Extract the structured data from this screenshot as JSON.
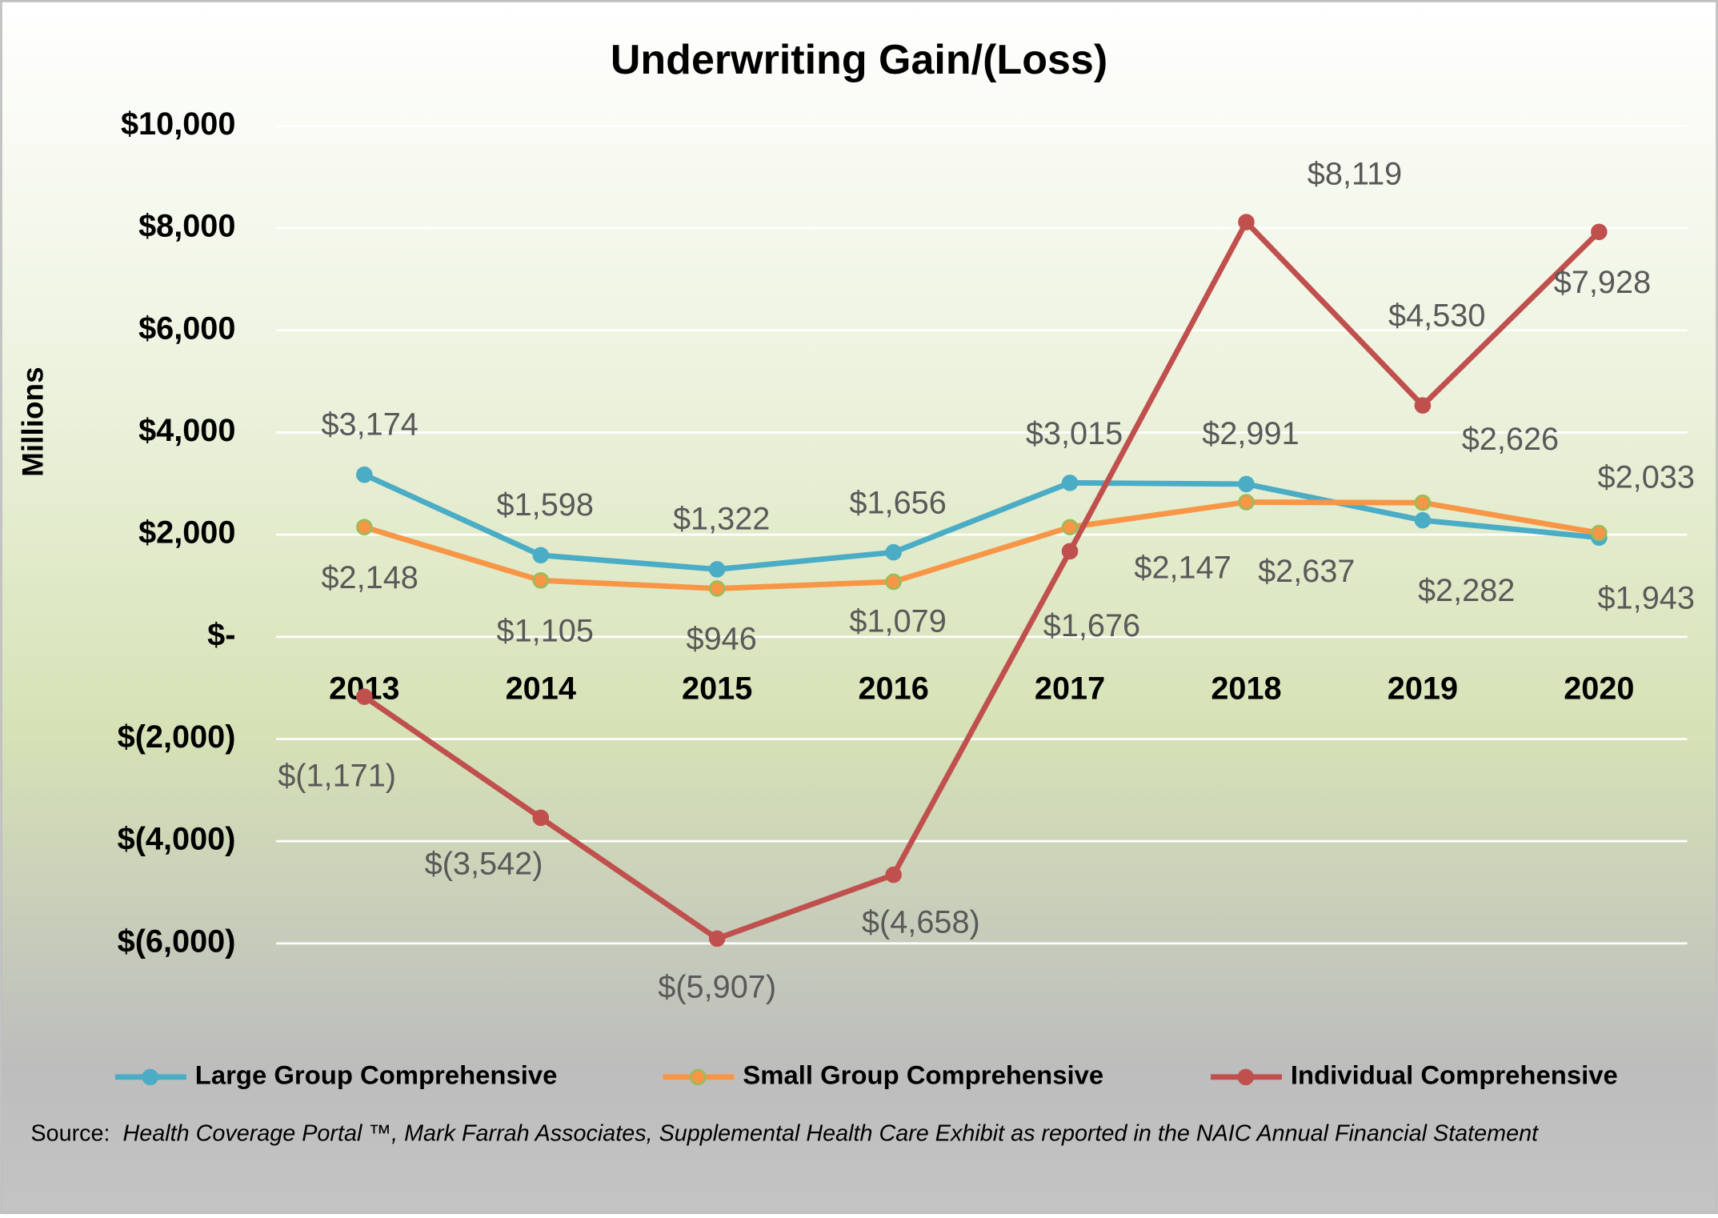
{
  "chart_data": {
    "type": "line",
    "title": "Underwriting Gain/(Loss)",
    "y_label": "Millions",
    "categories": [
      "2013",
      "2014",
      "2015",
      "2016",
      "2017",
      "2018",
      "2019",
      "2020"
    ],
    "series": [
      {
        "name": "Large Group Comprehensive",
        "color": "#4bacc6",
        "marker_edge": "#4bacc6",
        "values": [
          3174,
          1598,
          1322,
          1656,
          3015,
          2991,
          2282,
          1943
        ],
        "value_labels": [
          "$3,174",
          "$1,598",
          "$1,322",
          "$1,656",
          "$3,015",
          "$2,991",
          "$2,282",
          "$1,943"
        ]
      },
      {
        "name": "Small Group Comprehensive",
        "color": "#f79646",
        "marker_edge": "#9bbb59",
        "values": [
          2148,
          1105,
          946,
          1079,
          2147,
          2637,
          2626,
          2033
        ],
        "value_labels": [
          "$2,148",
          "$1,105",
          "$946",
          "$1,079",
          "$2,147",
          "$2,637",
          "$2,626",
          "$2,033"
        ]
      },
      {
        "name": "Individual Comprehensive",
        "color": "#c0504d",
        "marker_edge": "#c0504d",
        "values": [
          -1171,
          -3542,
          -5907,
          -4658,
          1676,
          8119,
          4530,
          7928
        ],
        "value_labels": [
          "$(1,171)",
          "$(3,542)",
          "$(5,907)",
          "$(4,658)",
          "$1,676",
          "$8,119",
          "$4,530",
          "$7,928"
        ]
      }
    ],
    "ylim": [
      -6000,
      10000
    ],
    "yticks": [
      {
        "value": -6000,
        "label": "$(6,000)"
      },
      {
        "value": -4000,
        "label": "$(4,000)"
      },
      {
        "value": -2000,
        "label": "$(2,000)"
      },
      {
        "value": 0,
        "label": "$-"
      },
      {
        "value": 2000,
        "label": "$2,000"
      },
      {
        "value": 4000,
        "label": "$4,000"
      },
      {
        "value": 6000,
        "label": "$6,000"
      },
      {
        "value": 8000,
        "label": "$8,000"
      },
      {
        "value": 10000,
        "label": "$10,000"
      }
    ],
    "grid": true,
    "legend": "bottom",
    "source": {
      "prefix": "Source:",
      "text": "Health Coverage Portal ™, Mark Farrah Associates, Supplemental Health Care Exhibit as reported in the NAIC Annual Financial Statement"
    }
  }
}
